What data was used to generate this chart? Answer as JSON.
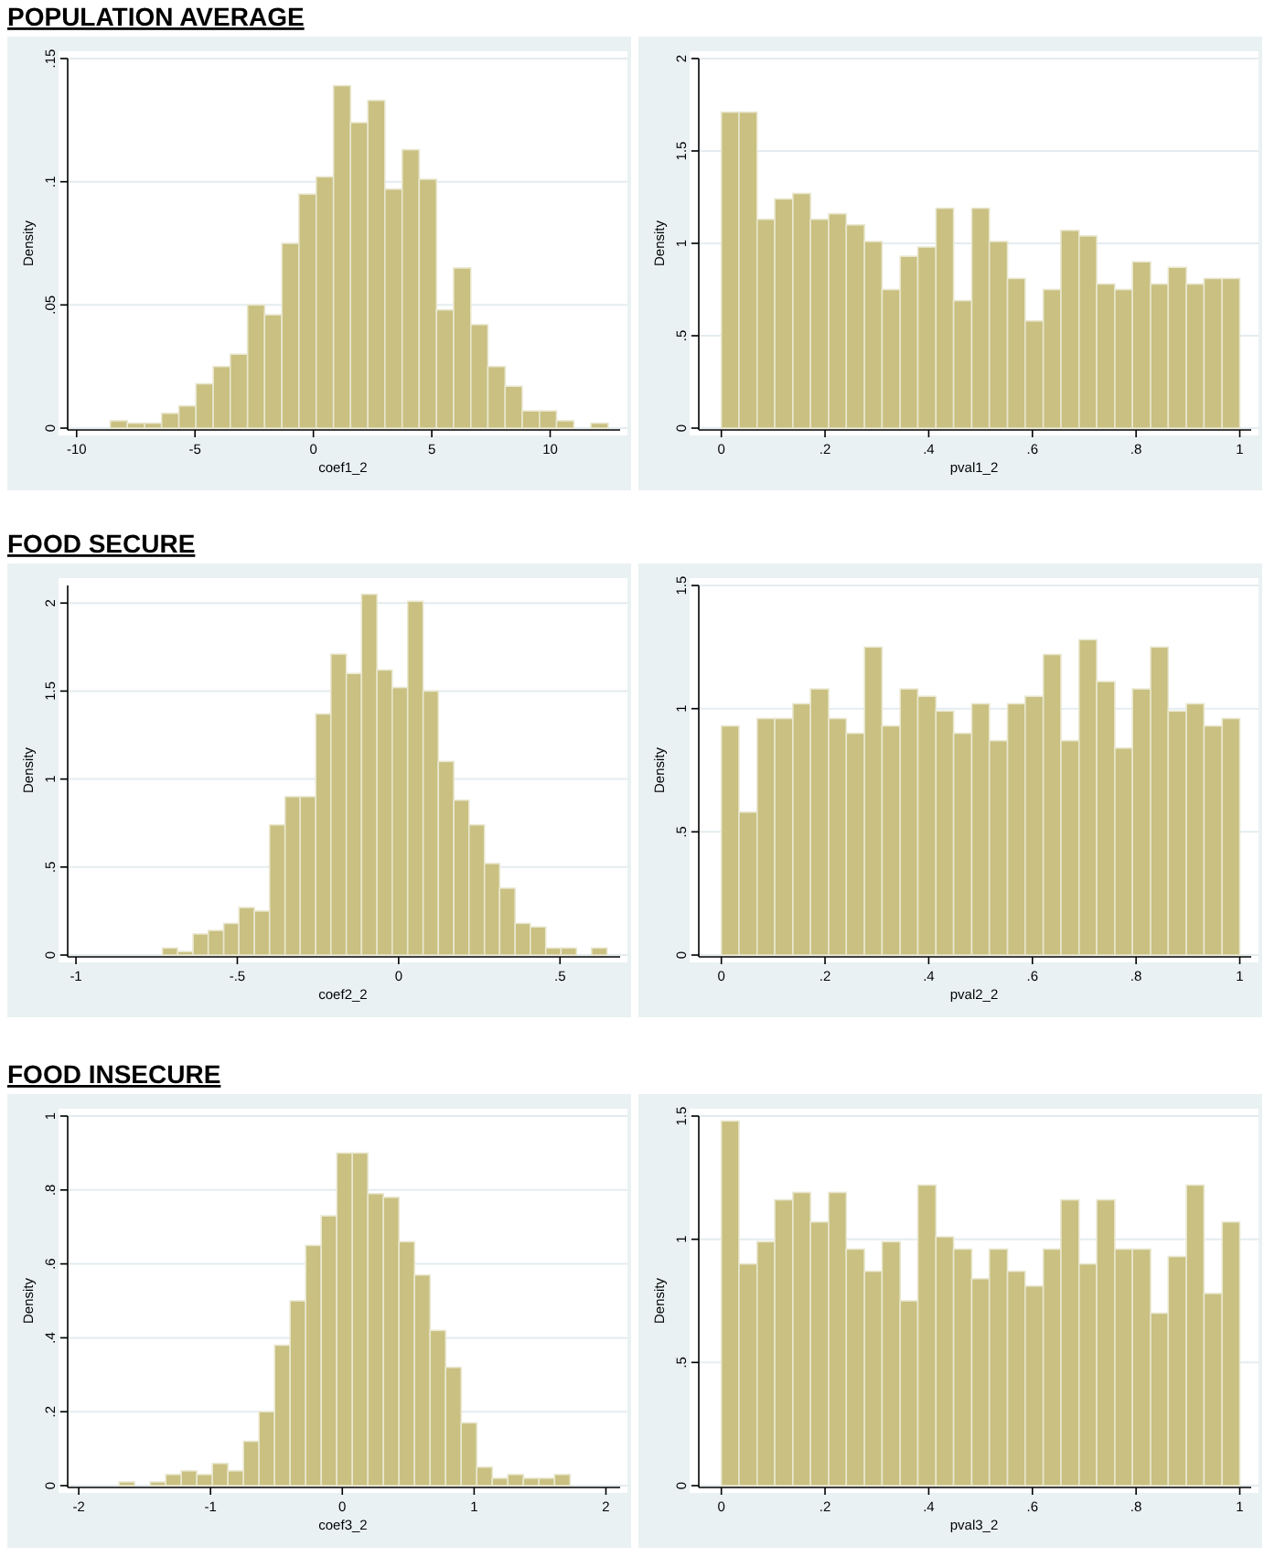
{
  "chart_data": [
    {
      "type": "histogram",
      "title": "POPULATION AVERAGE",
      "xlabel": "coef1_2",
      "ylabel": "Density",
      "color": "#c9c081",
      "grid": "y",
      "bins": [
        -8.58,
        -7.86,
        -7.13,
        -6.41,
        -5.68,
        -4.96,
        -4.23,
        -3.51,
        -2.78,
        -2.06,
        -1.33,
        -0.61,
        0.12,
        0.85,
        1.57,
        2.3,
        3.02,
        3.75,
        4.47,
        5.2,
        5.92,
        6.65,
        7.37,
        8.1,
        8.82,
        9.55,
        10.27,
        11,
        11.72,
        12.45
      ],
      "values": [
        0.003,
        0.002,
        0.002,
        0.006,
        0.009,
        0.018,
        0.025,
        0.03,
        0.05,
        0.046,
        0.075,
        0.095,
        0.102,
        0.139,
        0.124,
        0.133,
        0.097,
        0.113,
        0.101,
        0.048,
        0.065,
        0.042,
        0.025,
        0.017,
        0.007,
        0.007,
        0.003,
        0,
        0.002
      ],
      "xlim": [
        -10.3,
        12.8
      ],
      "xticks": [
        -10,
        -5,
        0,
        5,
        10
      ],
      "ylim": [
        0,
        0.15
      ],
      "yticks": [
        0,
        {
          "value": 0.05,
          "label": ".05"
        },
        {
          "value": 0.1,
          "label": ".1"
        },
        {
          "value": 0.15,
          "label": ".15"
        }
      ]
    },
    {
      "type": "histogram",
      "xlabel": "pval1_2",
      "ylabel": "Density",
      "color": "#c9c081",
      "grid": "y",
      "bins": [
        0,
        0.034,
        0.069,
        0.103,
        0.138,
        0.172,
        0.207,
        0.241,
        0.276,
        0.31,
        0.345,
        0.379,
        0.414,
        0.448,
        0.483,
        0.517,
        0.552,
        0.586,
        0.621,
        0.655,
        0.69,
        0.724,
        0.759,
        0.793,
        0.828,
        0.862,
        0.897,
        0.931,
        0.966,
        1
      ],
      "values": [
        1.71,
        1.71,
        1.13,
        1.24,
        1.27,
        1.13,
        1.16,
        1.1,
        1.01,
        0.75,
        0.93,
        0.98,
        1.19,
        0.69,
        1.19,
        1.01,
        0.81,
        0.58,
        0.75,
        1.07,
        1.04,
        0.78,
        0.75,
        0.9,
        0.78,
        0.87,
        0.78,
        0.81,
        0.81
      ],
      "xlim": [
        -0.04,
        1.015
      ],
      "xticks": [
        0,
        {
          "value": 0.2,
          "label": ".2"
        },
        {
          "value": 0.4,
          "label": ".4"
        },
        {
          "value": 0.6,
          "label": ".6"
        },
        {
          "value": 0.8,
          "label": ".8"
        },
        1
      ],
      "ylim": [
        0,
        2
      ],
      "yticks": [
        0,
        {
          "value": 0.5,
          "label": ".5"
        },
        1,
        1.5,
        2
      ]
    },
    {
      "type": "histogram",
      "title": "FOOD SECURE",
      "xlabel": "coef2_2",
      "ylabel": "Density",
      "color": "#c9c081",
      "grid": "y",
      "bins": [
        -0.732,
        -0.685,
        -0.637,
        -0.59,
        -0.542,
        -0.495,
        -0.447,
        -0.4,
        -0.352,
        -0.305,
        -0.257,
        -0.21,
        -0.162,
        -0.115,
        -0.067,
        -0.02,
        0.028,
        0.076,
        0.123,
        0.171,
        0.218,
        0.266,
        0.313,
        0.361,
        0.408,
        0.456,
        0.503,
        0.551,
        0.598,
        0.646
      ],
      "values": [
        0.04,
        0.02,
        0.12,
        0.14,
        0.18,
        0.27,
        0.25,
        0.74,
        0.9,
        0.9,
        1.37,
        1.71,
        1.6,
        2.05,
        1.62,
        1.52,
        2.01,
        1.5,
        1.1,
        0.88,
        0.74,
        0.52,
        0.38,
        0.18,
        0.16,
        0.04,
        0.04,
        0,
        0.04
      ],
      "xlim": [
        -1.02,
        0.675
      ],
      "xticks": [
        -1,
        {
          "value": -0.5,
          "label": "-.5"
        },
        0,
        {
          "value": 0.5,
          "label": ".5"
        }
      ],
      "ylim": [
        0,
        2.1
      ],
      "yticks": [
        0,
        {
          "value": 0.5,
          "label": ".5"
        },
        1,
        1.5,
        2
      ]
    },
    {
      "type": "histogram",
      "xlabel": "pval2_2",
      "ylabel": "Density",
      "color": "#c9c081",
      "grid": "y",
      "bins": [
        0,
        0.034,
        0.069,
        0.103,
        0.138,
        0.172,
        0.207,
        0.241,
        0.276,
        0.31,
        0.345,
        0.379,
        0.414,
        0.448,
        0.483,
        0.517,
        0.552,
        0.586,
        0.621,
        0.655,
        0.69,
        0.724,
        0.759,
        0.793,
        0.828,
        0.862,
        0.897,
        0.931,
        0.966,
        1
      ],
      "values": [
        0.93,
        0.58,
        0.96,
        0.96,
        1.02,
        1.08,
        0.96,
        0.9,
        1.25,
        0.93,
        1.08,
        1.05,
        0.99,
        0.9,
        1.02,
        0.87,
        1.02,
        1.05,
        1.22,
        0.87,
        1.28,
        1.11,
        0.84,
        1.08,
        1.25,
        0.99,
        1.02,
        0.93,
        0.96
      ],
      "xlim": [
        -0.04,
        1.015
      ],
      "xticks": [
        0,
        {
          "value": 0.2,
          "label": ".2"
        },
        {
          "value": 0.4,
          "label": ".4"
        },
        {
          "value": 0.6,
          "label": ".6"
        },
        {
          "value": 0.8,
          "label": ".8"
        },
        1
      ],
      "ylim": [
        0,
        1.5
      ],
      "yticks": [
        0,
        {
          "value": 0.5,
          "label": ".5"
        },
        1,
        1.5
      ]
    },
    {
      "type": "histogram",
      "title": "FOOD INSECURE",
      "xlabel": "coef3_2",
      "ylabel": "Density",
      "color": "#c9c081",
      "grid": "y",
      "bins": [
        -1.694,
        -1.576,
        -1.458,
        -1.34,
        -1.222,
        -1.104,
        -0.986,
        -0.868,
        -0.75,
        -0.632,
        -0.514,
        -0.396,
        -0.278,
        -0.16,
        -0.042,
        0.076,
        0.194,
        0.312,
        0.43,
        0.548,
        0.666,
        0.784,
        0.902,
        1.02,
        1.138,
        1.256,
        1.374,
        1.492,
        1.61,
        1.728
      ],
      "values": [
        0.01,
        0,
        0.01,
        0.03,
        0.04,
        0.03,
        0.06,
        0.04,
        0.12,
        0.2,
        0.38,
        0.5,
        0.65,
        0.73,
        0.9,
        0.9,
        0.79,
        0.78,
        0.66,
        0.57,
        0.42,
        0.32,
        0.17,
        0.05,
        0.02,
        0.03,
        0.02,
        0.02,
        0.03
      ],
      "xlim": [
        -2.07,
        2.08
      ],
      "xticks": [
        -2,
        -1,
        0,
        1,
        2
      ],
      "ylim": [
        0,
        1
      ],
      "yticks": [
        0,
        {
          "value": 0.2,
          "label": ".2"
        },
        {
          "value": 0.4,
          "label": ".4"
        },
        {
          "value": 0.6,
          "label": ".6"
        },
        {
          "value": 0.8,
          "label": ".8"
        },
        1
      ]
    },
    {
      "type": "histogram",
      "xlabel": "pval3_2",
      "ylabel": "Density",
      "color": "#c9c081",
      "grid": "y",
      "bins": [
        0,
        0.034,
        0.069,
        0.103,
        0.138,
        0.172,
        0.207,
        0.241,
        0.276,
        0.31,
        0.345,
        0.379,
        0.414,
        0.448,
        0.483,
        0.517,
        0.552,
        0.586,
        0.621,
        0.655,
        0.69,
        0.724,
        0.759,
        0.793,
        0.828,
        0.862,
        0.897,
        0.931,
        0.966,
        1
      ],
      "values": [
        1.48,
        0.9,
        0.99,
        1.16,
        1.19,
        1.07,
        1.19,
        0.96,
        0.87,
        0.99,
        0.75,
        1.22,
        1.01,
        0.96,
        0.84,
        0.96,
        0.87,
        0.81,
        0.96,
        1.16,
        0.9,
        1.16,
        0.96,
        0.96,
        0.7,
        0.93,
        1.22,
        0.78,
        1.07
      ],
      "xlim": [
        -0.04,
        1.015
      ],
      "xticks": [
        0,
        {
          "value": 0.2,
          "label": ".2"
        },
        {
          "value": 0.4,
          "label": ".4"
        },
        {
          "value": 0.6,
          "label": ".6"
        },
        {
          "value": 0.8,
          "label": ".8"
        },
        1
      ],
      "ylim": [
        0,
        1.5
      ],
      "yticks": [
        0,
        {
          "value": 0.5,
          "label": ".5"
        },
        1,
        1.5
      ]
    }
  ]
}
